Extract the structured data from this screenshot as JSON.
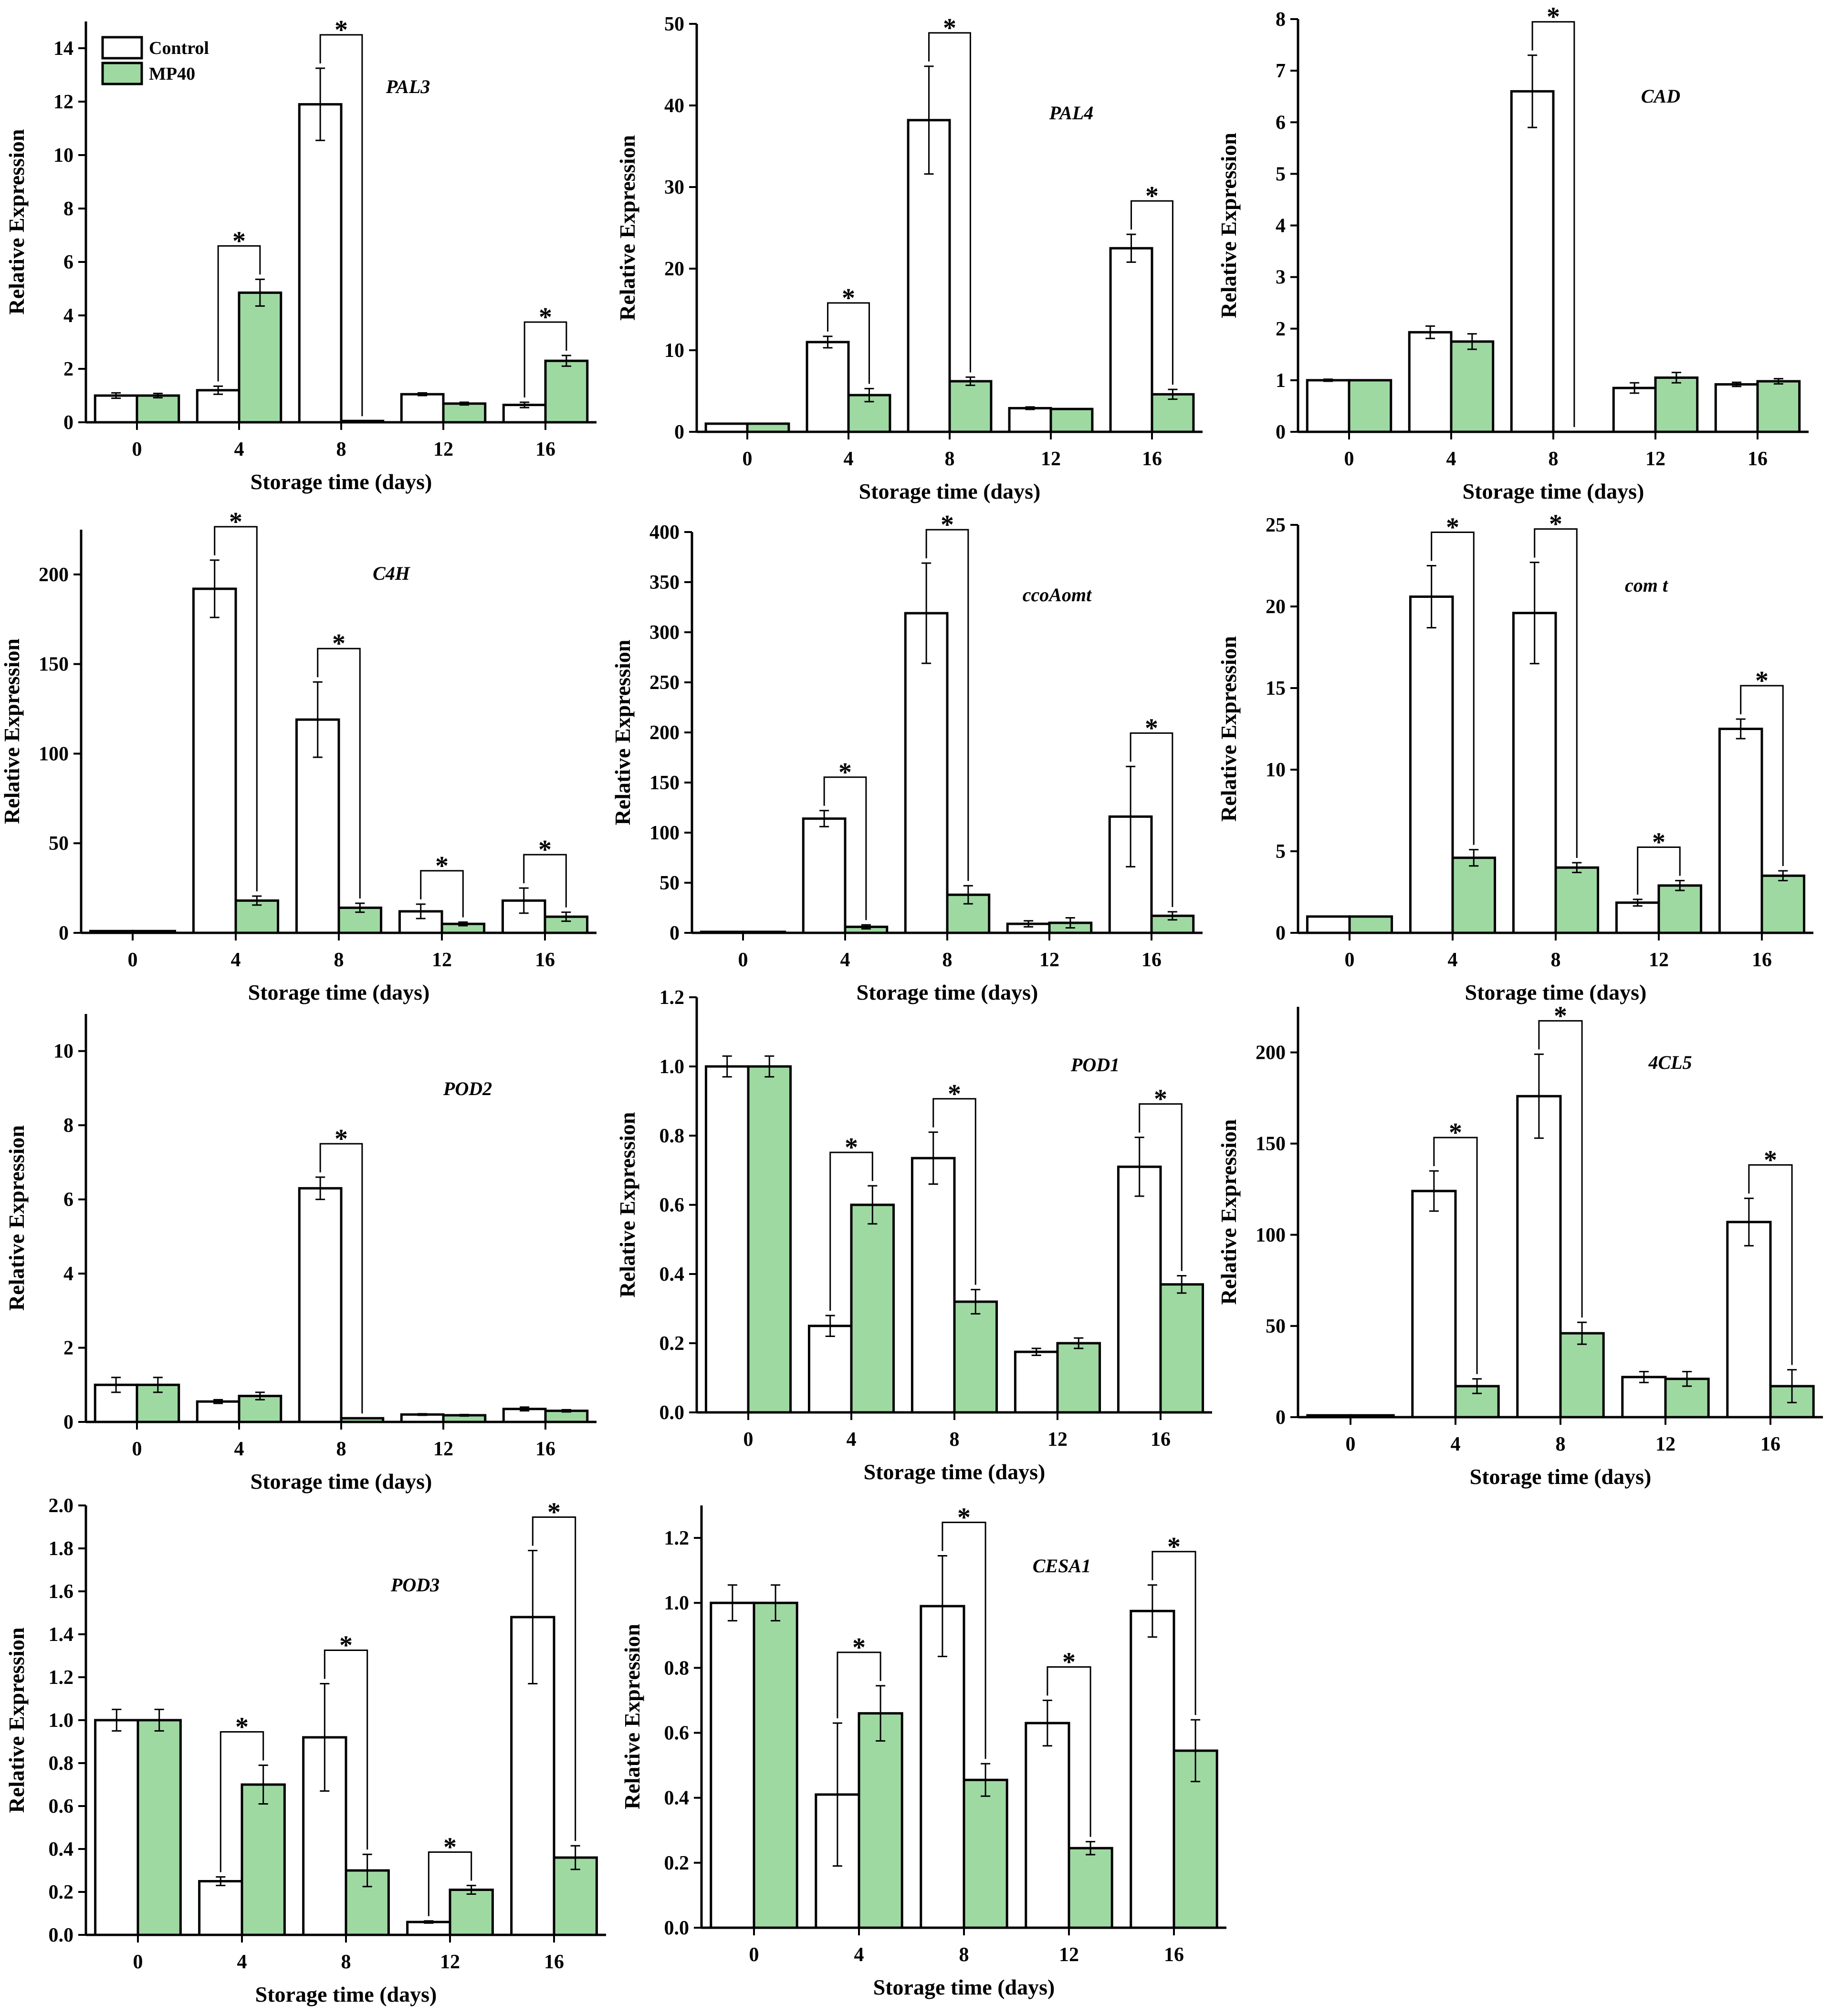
{
  "legend": {
    "control": "Control",
    "mp40": "MP40"
  },
  "colors": {
    "control": "#ffffff",
    "mp40": "#9fd9a2",
    "stroke": "#000000"
  },
  "chart_data": [
    {
      "type": "bar",
      "gene": "PAL3",
      "title": "PAL3",
      "xlabel": "Storage time (days)",
      "ylabel": "Relative Expression",
      "categories": [
        "0",
        "4",
        "8",
        "12",
        "16"
      ],
      "ylim": [
        0,
        15
      ],
      "yticks": [
        0,
        2,
        4,
        6,
        8,
        10,
        12,
        14
      ],
      "series": [
        {
          "name": "Control",
          "values": [
            1.0,
            1.2,
            11.9,
            1.05,
            0.65
          ],
          "errors": [
            0.1,
            0.15,
            1.35,
            0.05,
            0.1
          ]
        },
        {
          "name": "MP40",
          "values": [
            1.0,
            4.85,
            0.05,
            0.7,
            2.3
          ],
          "errors": [
            0.08,
            0.5,
            0.0,
            0.05,
            0.2
          ]
        }
      ],
      "significance": [
        "",
        "*",
        "*",
        "",
        "*"
      ]
    },
    {
      "type": "bar",
      "gene": "PAL4",
      "title": "PAL4",
      "xlabel": "Storage time (days)",
      "ylabel": "Relative Expression",
      "categories": [
        "0",
        "4",
        "8",
        "12",
        "16"
      ],
      "ylim": [
        0,
        50
      ],
      "yticks": [
        0,
        10,
        20,
        30,
        40,
        50
      ],
      "series": [
        {
          "name": "Control",
          "values": [
            1.0,
            11.0,
            38.2,
            2.9,
            22.5
          ],
          "errors": [
            0.0,
            0.7,
            6.6,
            0.15,
            1.7
          ]
        },
        {
          "name": "MP40",
          "values": [
            1.0,
            4.5,
            6.2,
            2.8,
            4.6
          ],
          "errors": [
            0.0,
            0.8,
            0.5,
            0.0,
            0.6
          ]
        }
      ],
      "significance": [
        "",
        "*",
        "*",
        "",
        "*"
      ]
    },
    {
      "type": "bar",
      "gene": "CAD",
      "title": "CAD",
      "xlabel": "Storage time (days)",
      "ylabel": "Relative Expression",
      "categories": [
        "0",
        "4",
        "8",
        "12",
        "16"
      ],
      "ylim": [
        0,
        8
      ],
      "yticks": [
        0,
        1,
        2,
        3,
        4,
        5,
        6,
        7,
        8
      ],
      "series": [
        {
          "name": "Control",
          "values": [
            1.0,
            1.93,
            6.6,
            0.85,
            0.92
          ],
          "errors": [
            0.02,
            0.12,
            0.7,
            0.1,
            0.04
          ]
        },
        {
          "name": "MP40",
          "values": [
            1.0,
            1.75,
            0.0,
            1.05,
            0.98
          ],
          "errors": [
            0.0,
            0.15,
            0.0,
            0.1,
            0.05
          ]
        }
      ],
      "significance": [
        "",
        "",
        "*",
        "",
        ""
      ]
    },
    {
      "type": "bar",
      "gene": "C4H",
      "title": "C4H",
      "xlabel": "Storage time (days)",
      "ylabel": "Relative Expression",
      "categories": [
        "0",
        "4",
        "8",
        "12",
        "16"
      ],
      "ylim": [
        0,
        225
      ],
      "yticks": [
        0,
        50,
        100,
        150,
        200
      ],
      "series": [
        {
          "name": "Control",
          "values": [
            1.0,
            192,
            119,
            12,
            18
          ],
          "errors": [
            0.0,
            16,
            21,
            4,
            7
          ]
        },
        {
          "name": "MP40",
          "values": [
            1.0,
            18,
            14,
            5,
            9
          ],
          "errors": [
            0.0,
            2.5,
            2.5,
            1,
            2.5
          ]
        }
      ],
      "significance": [
        "",
        "*",
        "*",
        "*",
        "*"
      ]
    },
    {
      "type": "bar",
      "gene": "ccoAomt",
      "title": "ccoAomt",
      "xlabel": "Storage time (days)",
      "ylabel": "Relative Expression",
      "categories": [
        "0",
        "4",
        "8",
        "12",
        "16"
      ],
      "ylim": [
        0,
        400
      ],
      "yticks": [
        0,
        50,
        100,
        150,
        200,
        250,
        300,
        350,
        400
      ],
      "series": [
        {
          "name": "Control",
          "values": [
            1.0,
            114,
            319,
            9,
            116
          ],
          "errors": [
            0.0,
            8,
            50,
            3,
            50
          ]
        },
        {
          "name": "MP40",
          "values": [
            1.0,
            6,
            38,
            10,
            17
          ],
          "errors": [
            0.0,
            2,
            9,
            5,
            4
          ]
        }
      ],
      "significance": [
        "",
        "*",
        "*",
        "",
        "*"
      ]
    },
    {
      "type": "bar",
      "gene": "comt",
      "title": "com t",
      "xlabel": "Storage time (days)",
      "ylabel": "Relative Expression",
      "categories": [
        "0",
        "4",
        "8",
        "12",
        "16"
      ],
      "ylim": [
        0,
        25
      ],
      "yticks": [
        0,
        5,
        10,
        15,
        20,
        25
      ],
      "series": [
        {
          "name": "Control",
          "values": [
            1.0,
            20.6,
            19.6,
            1.85,
            12.5
          ],
          "errors": [
            0.0,
            1.9,
            3.1,
            0.2,
            0.6
          ]
        },
        {
          "name": "MP40",
          "values": [
            1.0,
            4.6,
            4.0,
            2.9,
            3.5
          ],
          "errors": [
            0.0,
            0.5,
            0.3,
            0.3,
            0.3
          ]
        }
      ],
      "significance": [
        "",
        "*",
        "*",
        "*",
        "*"
      ]
    },
    {
      "type": "bar",
      "gene": "POD2",
      "title": "POD2",
      "xlabel": "Storage time (days)",
      "ylabel": "Relative Expression",
      "categories": [
        "0",
        "4",
        "8",
        "12",
        "16"
      ],
      "ylim": [
        0,
        11
      ],
      "yticks": [
        0,
        2,
        4,
        6,
        8,
        10
      ],
      "series": [
        {
          "name": "Control",
          "values": [
            1.0,
            0.55,
            6.3,
            0.2,
            0.35
          ],
          "errors": [
            0.2,
            0.05,
            0.3,
            0.02,
            0.05
          ]
        },
        {
          "name": "MP40",
          "values": [
            1.0,
            0.7,
            0.1,
            0.18,
            0.3
          ],
          "errors": [
            0.2,
            0.1,
            0.0,
            0.02,
            0.03
          ]
        }
      ],
      "significance": [
        "",
        "",
        "*",
        "",
        ""
      ]
    },
    {
      "type": "bar",
      "gene": "POD1",
      "title": "POD1",
      "xlabel": "Storage time (days)",
      "ylabel": "Relative Expression",
      "categories": [
        "0",
        "4",
        "8",
        "12",
        "16"
      ],
      "ylim": [
        0,
        1.2
      ],
      "yticks": [
        0.0,
        0.2,
        0.4,
        0.6,
        0.8,
        1.0,
        1.2
      ],
      "series": [
        {
          "name": "Control",
          "values": [
            1.0,
            0.25,
            0.735,
            0.175,
            0.71
          ],
          "errors": [
            0.03,
            0.03,
            0.075,
            0.01,
            0.085
          ]
        },
        {
          "name": "MP40",
          "values": [
            1.0,
            0.6,
            0.32,
            0.2,
            0.37
          ],
          "errors": [
            0.03,
            0.055,
            0.035,
            0.015,
            0.025
          ]
        }
      ],
      "significance": [
        "",
        "*",
        "*",
        "",
        "*"
      ]
    },
    {
      "type": "bar",
      "gene": "4CL5",
      "title": "4CL5",
      "xlabel": "Storage time (days)",
      "ylabel": "Relative Expression",
      "categories": [
        "0",
        "4",
        "8",
        "12",
        "16"
      ],
      "ylim": [
        0,
        225
      ],
      "yticks": [
        0,
        50,
        100,
        150,
        200
      ],
      "series": [
        {
          "name": "Control",
          "values": [
            1.0,
            124,
            176,
            22,
            107
          ],
          "errors": [
            0.0,
            11,
            23,
            3,
            13
          ]
        },
        {
          "name": "MP40",
          "values": [
            1.0,
            17,
            46,
            21,
            17
          ],
          "errors": [
            0.0,
            4,
            6,
            4,
            9
          ]
        }
      ],
      "significance": [
        "",
        "*",
        "*",
        "",
        "*"
      ]
    },
    {
      "type": "bar",
      "gene": "POD3",
      "title": "POD3",
      "xlabel": "Storage time (days)",
      "ylabel": "Relative Expression",
      "categories": [
        "0",
        "4",
        "8",
        "12",
        "16"
      ],
      "ylim": [
        0,
        2.0
      ],
      "yticks": [
        0.0,
        0.2,
        0.4,
        0.6,
        0.8,
        1.0,
        1.2,
        1.4,
        1.6,
        1.8,
        2.0
      ],
      "series": [
        {
          "name": "Control",
          "values": [
            1.0,
            0.25,
            0.92,
            0.06,
            1.48
          ],
          "errors": [
            0.05,
            0.02,
            0.25,
            0.005,
            0.31
          ]
        },
        {
          "name": "MP40",
          "values": [
            1.0,
            0.7,
            0.3,
            0.21,
            0.36
          ],
          "errors": [
            0.05,
            0.09,
            0.075,
            0.02,
            0.055
          ]
        }
      ],
      "significance": [
        "",
        "*",
        "*",
        "*",
        "*"
      ]
    },
    {
      "type": "bar",
      "gene": "CESA1",
      "title": "CESA1",
      "xlabel": "Storage time (days)",
      "ylabel": "Relative Expression",
      "categories": [
        "0",
        "4",
        "8",
        "12",
        "16"
      ],
      "ylim": [
        0,
        1.3
      ],
      "yticks": [
        0.0,
        0.2,
        0.4,
        0.6,
        0.8,
        1.0,
        1.2
      ],
      "series": [
        {
          "name": "Control",
          "values": [
            1.0,
            0.41,
            0.99,
            0.63,
            0.975
          ],
          "errors": [
            0.055,
            0.22,
            0.155,
            0.07,
            0.08
          ]
        },
        {
          "name": "MP40",
          "values": [
            1.0,
            0.66,
            0.455,
            0.245,
            0.545
          ],
          "errors": [
            0.055,
            0.085,
            0.05,
            0.02,
            0.095
          ]
        }
      ],
      "significance": [
        "",
        "*",
        "*",
        "*",
        "*"
      ]
    }
  ]
}
